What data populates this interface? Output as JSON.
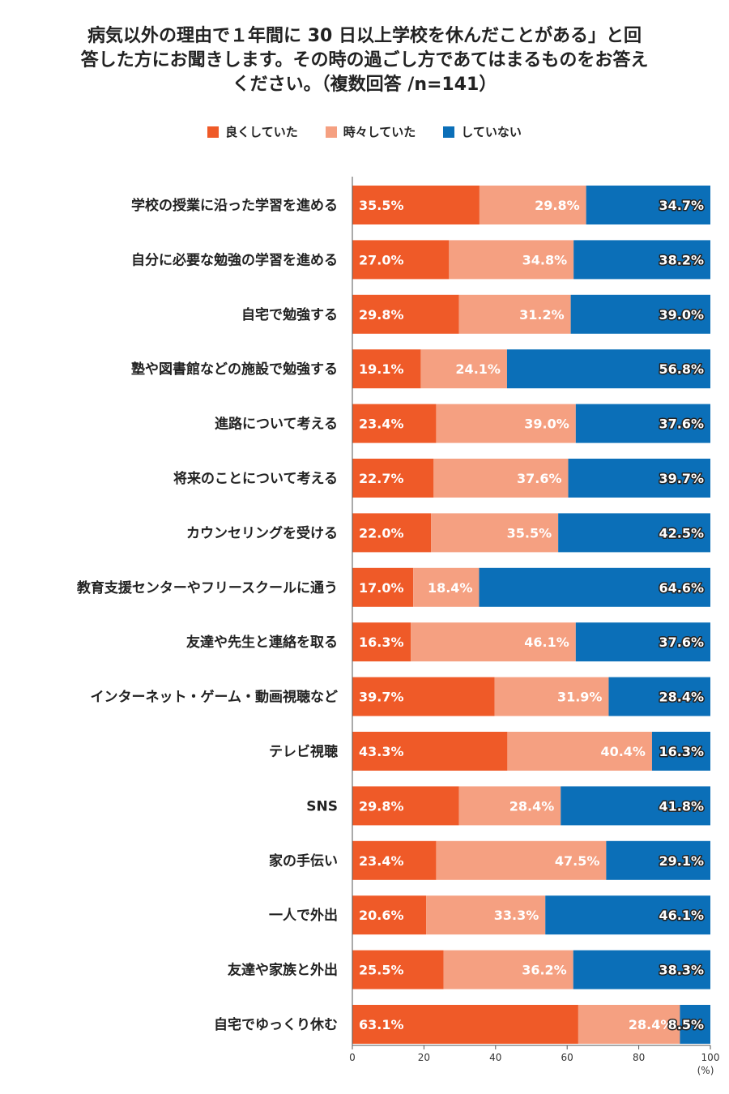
{
  "chart_data": {
    "type": "bar",
    "orientation": "horizontal-stacked-100",
    "title_lines": [
      "病気以外の理由で１年間に 30 日以上学校を休んだことがある」と回",
      "答した方にお聞きします。その時の過ごし方であてはまるものをお答え",
      "ください。（複数回答 /n=141）"
    ],
    "series": [
      {
        "name": "良くしていた",
        "color": "#ef5a28",
        "values": [
          35.5,
          27.0,
          29.8,
          19.1,
          23.4,
          22.7,
          22.0,
          17.0,
          16.3,
          39.7,
          43.3,
          29.8,
          23.4,
          20.6,
          25.5,
          63.1
        ]
      },
      {
        "name": "時々していた",
        "color": "#f5a081",
        "values": [
          29.8,
          34.8,
          31.2,
          24.1,
          39.0,
          37.6,
          35.5,
          18.4,
          46.1,
          31.9,
          40.4,
          28.4,
          47.5,
          33.3,
          36.2,
          28.4
        ]
      },
      {
        "name": "していない",
        "color": "#0b6fb8",
        "values": [
          34.7,
          38.2,
          39.0,
          56.8,
          37.6,
          39.7,
          42.5,
          64.6,
          37.6,
          28.4,
          16.3,
          41.8,
          29.1,
          46.1,
          38.3,
          8.5
        ]
      }
    ],
    "categories": [
      "学校の授業に沿った学習を進める",
      "自分に必要な勉強の学習を進める",
      "自宅で勉強する",
      "塾や図書館などの施設で勉強する",
      "進路について考える",
      "将来のことについて考える",
      "カウンセリングを受ける",
      "教育支援センターやフリースクールに通う",
      "友達や先生と連絡を取る",
      "インターネット・ゲーム・動画視聴など",
      "テレビ視聴",
      "SNS",
      "家の手伝い",
      "一人で外出",
      "友達や家族と外出",
      "自宅でゆっくり休む"
    ],
    "xlim": [
      0,
      100
    ],
    "xticks": [
      0,
      20,
      40,
      60,
      80,
      100
    ],
    "xunit": "(%)",
    "legend_position": "top-center"
  }
}
